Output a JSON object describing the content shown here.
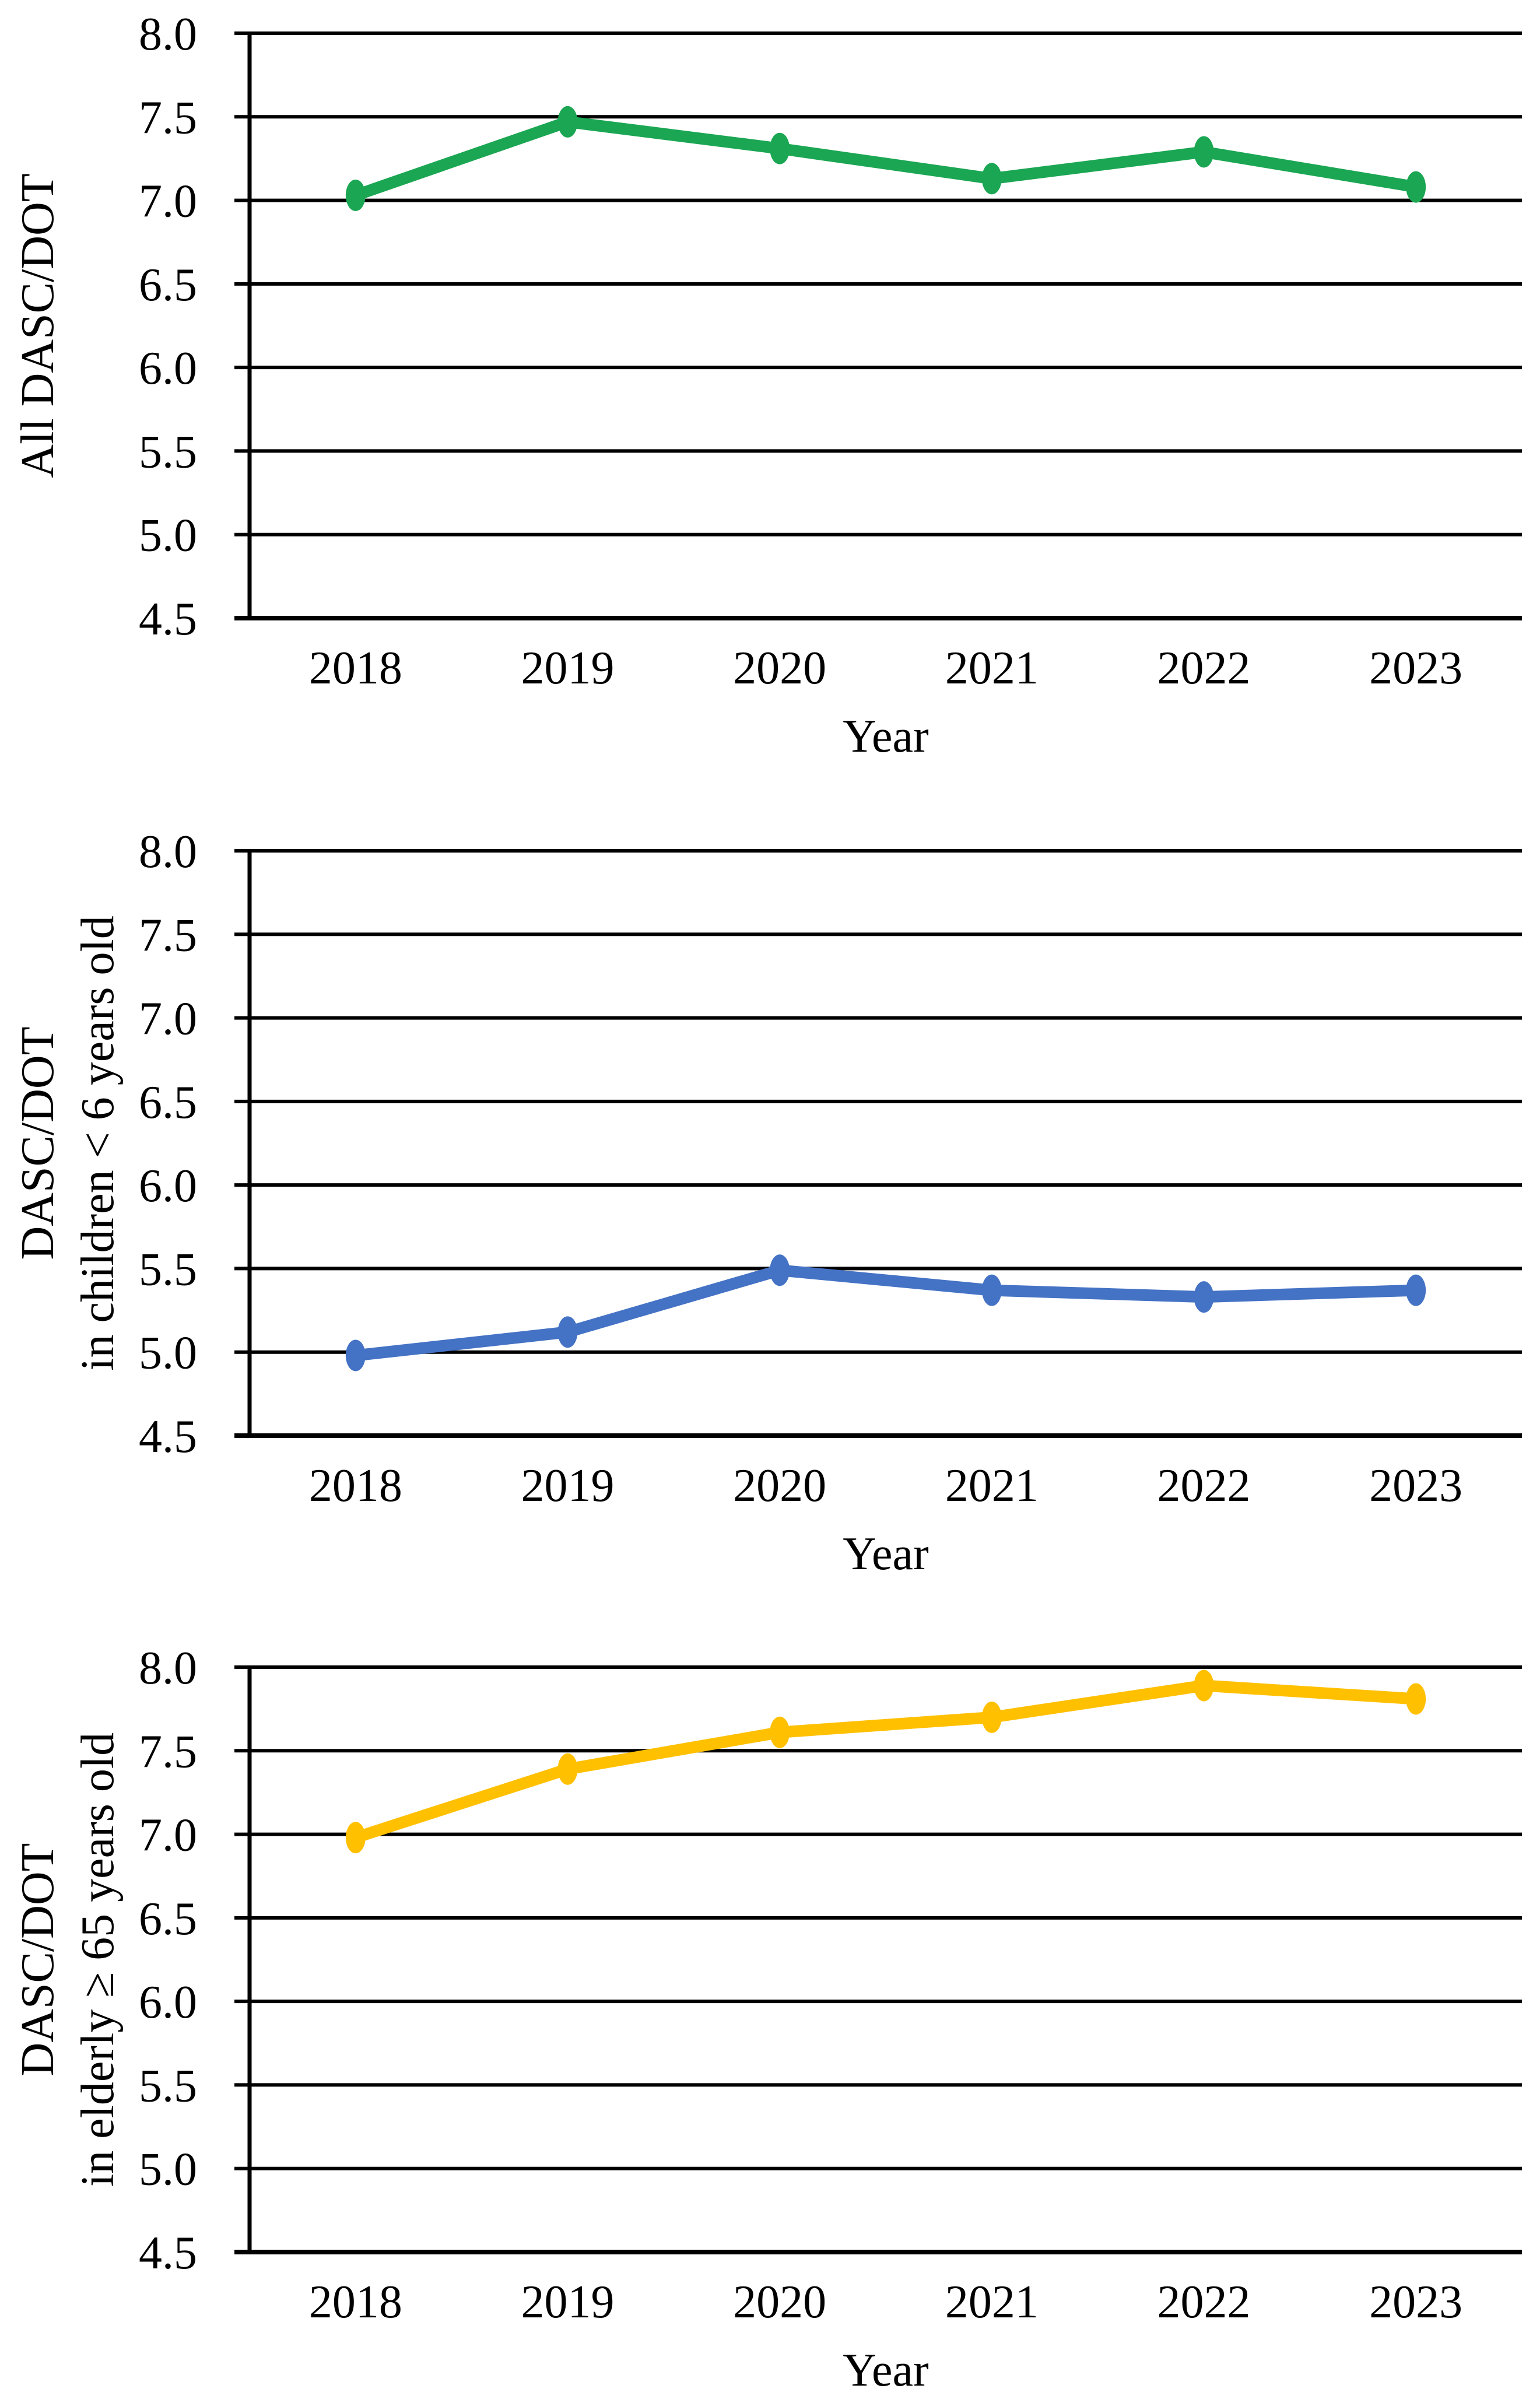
{
  "colors": {
    "axis_and_grid": "#000000",
    "text": "#000000",
    "series_green": "#1AA652",
    "series_blue": "#4472C4",
    "series_gold": "#FFC000"
  },
  "chart_data": [
    {
      "type": "line",
      "categories": [
        "2018",
        "2019",
        "2020",
        "2021",
        "2022",
        "2023"
      ],
      "series": [
        {
          "name": "All DASC/DOT",
          "values": [
            7.03,
            7.47,
            7.31,
            7.13,
            7.29,
            7.08
          ],
          "color": "#1AA652"
        }
      ],
      "xlabel": "Year",
      "ylabel_lines": [
        "All DASC/DOT"
      ],
      "yticks": [
        "8.0",
        "7.5",
        "7.0",
        "6.5",
        "6.0",
        "5.5",
        "5.0",
        "4.5"
      ],
      "ylim": [
        4.5,
        8.0
      ],
      "grid": true,
      "legend": false
    },
    {
      "type": "line",
      "categories": [
        "2018",
        "2019",
        "2020",
        "2021",
        "2022",
        "2023"
      ],
      "series": [
        {
          "name": "DASC/DOT in children < 6 years old",
          "values": [
            4.98,
            5.12,
            5.49,
            5.37,
            5.33,
            5.37
          ],
          "color": "#4472C4"
        }
      ],
      "xlabel": "Year",
      "ylabel_lines": [
        "DASC/DOT",
        "in children < 6 years old"
      ],
      "yticks": [
        "8.0",
        "7.5",
        "7.0",
        "6.5",
        "6.0",
        "5.5",
        "5.0",
        "4.5"
      ],
      "ylim": [
        4.5,
        8.0
      ],
      "grid": true,
      "legend": false
    },
    {
      "type": "line",
      "categories": [
        "2018",
        "2019",
        "2020",
        "2021",
        "2022",
        "2023"
      ],
      "series": [
        {
          "name": "DASC/DOT in elderly ≥ 65 years old",
          "values": [
            6.98,
            7.39,
            7.61,
            7.7,
            7.89,
            7.81
          ],
          "color": "#FFC000"
        }
      ],
      "xlabel": "Year",
      "ylabel_lines": [
        "DASC/DOT",
        "in elderly ≥ 65 years old"
      ],
      "yticks": [
        "8.0",
        "7.5",
        "7.0",
        "6.5",
        "6.0",
        "5.5",
        "5.0",
        "4.5"
      ],
      "ylim": [
        4.5,
        8.0
      ],
      "grid": true,
      "legend": false
    }
  ]
}
